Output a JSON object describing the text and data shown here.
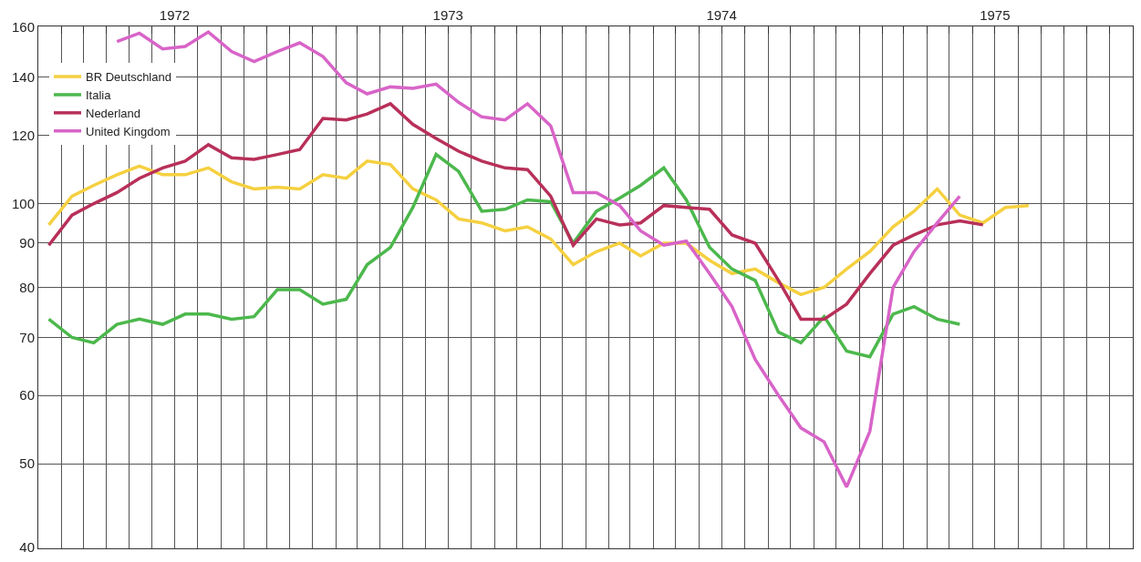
{
  "chart_data": {
    "type": "line",
    "log": "y",
    "grid": true,
    "legend": "top left",
    "marker": "none",
    "line_style": "solid",
    "x": [
      "1972-01-15",
      "1972-02-15",
      "1972-03-15",
      "1972-04-15",
      "1972-05-15",
      "1972-06-15",
      "1972-07-15",
      "1972-08-15",
      "1972-09-15",
      "1972-10-15",
      "1972-11-15",
      "1972-12-15",
      "1973-01-15",
      "1973-02-15",
      "1973-03-15",
      "1973-04-15",
      "1973-05-15",
      "1973-06-15",
      "1973-07-15",
      "1973-08-15",
      "1973-09-15",
      "1973-10-15",
      "1973-11-15",
      "1973-12-15",
      "1974-01-15",
      "1974-02-15",
      "1974-03-15",
      "1974-04-15",
      "1974-05-15",
      "1974-06-15",
      "1974-07-15",
      "1974-08-15",
      "1974-09-15",
      "1974-10-15",
      "1974-11-15",
      "1974-12-15",
      "1975-01-15",
      "1975-02-15",
      "1975-03-15",
      "1975-04-15",
      "1975-05-15",
      "1975-06-15",
      "1975-07-15",
      "1975-08-15"
    ],
    "series": [
      {
        "name": "BR Deutschland",
        "color": "#f5d040",
        "values": [
          94.5,
          102,
          105,
          108,
          110.5,
          108,
          108,
          110,
          106,
          104,
          104.5,
          104,
          108,
          107,
          112,
          111,
          104,
          101,
          96,
          95,
          93,
          94,
          91,
          85,
          88,
          90,
          87,
          90,
          90,
          86,
          83,
          84,
          81,
          78.5,
          80,
          84,
          88,
          94,
          98,
          104,
          97,
          95,
          99,
          99.5
        ]
      },
      {
        "name": "Italia",
        "color": "#4cb84c",
        "values": [
          73.5,
          70,
          69,
          72.5,
          73.5,
          72.5,
          74.5,
          74.5,
          73.5,
          74,
          79.5,
          79.5,
          76.5,
          77.5,
          85,
          89,
          99,
          114,
          109,
          98,
          98.5,
          101,
          100.5,
          90,
          98,
          101.5,
          105,
          110,
          101,
          89,
          84,
          81.5,
          71,
          69,
          74,
          67.5,
          66.5,
          74.5,
          76,
          73.5,
          72.5,
          null,
          null,
          null
        ]
      },
      {
        "name": "Nederland",
        "color": "#b8305a",
        "values": [
          89.5,
          97,
          100,
          103,
          107,
          110,
          112,
          117,
          113,
          112.5,
          114,
          115.5,
          125.5,
          125,
          127,
          130.5,
          123.5,
          119,
          115,
          112,
          110,
          109.5,
          102,
          89.5,
          96,
          94.5,
          95,
          99.5,
          99,
          98.5,
          92,
          90,
          81.5,
          73.5,
          73.5,
          76.5,
          83,
          89.5,
          92,
          94.5,
          95.5,
          94.5,
          null,
          null
        ]
      },
      {
        "name": "United Kingdom",
        "color": "#d864c8",
        "values": [
          null,
          null,
          null,
          154,
          157.5,
          151,
          152,
          158,
          150,
          146,
          150,
          153.5,
          148,
          138,
          134,
          136.5,
          136,
          137.5,
          131,
          126,
          125,
          130.5,
          123,
          103,
          103,
          99.5,
          93,
          89.5,
          90.5,
          83,
          76,
          66,
          60,
          55,
          53,
          47,
          54.5,
          80,
          88,
          95,
          102,
          null,
          null,
          null
        ]
      }
    ],
    "xlim": [
      "1972-01-01",
      "1976-01-01"
    ],
    "xticks": [
      {
        "value": "1972-01-01",
        "label": null
      },
      {
        "value": "1972-02-01",
        "label": null
      },
      {
        "value": "1972-03-01",
        "label": null
      },
      {
        "value": "1972-04-01",
        "label": null
      },
      {
        "value": "1972-05-01",
        "label": null
      },
      {
        "value": "1972-06-01",
        "label": null
      },
      {
        "value": "1972-07-01",
        "label": "1972"
      },
      {
        "value": "1972-08-01",
        "label": null
      },
      {
        "value": "1972-09-01",
        "label": null
      },
      {
        "value": "1972-10-01",
        "label": null
      },
      {
        "value": "1972-11-01",
        "label": null
      },
      {
        "value": "1972-12-01",
        "label": null
      },
      {
        "value": "1973-01-01",
        "label": null
      },
      {
        "value": "1973-02-01",
        "label": null
      },
      {
        "value": "1973-03-01",
        "label": null
      },
      {
        "value": "1973-04-01",
        "label": null
      },
      {
        "value": "1973-05-01",
        "label": null
      },
      {
        "value": "1973-06-01",
        "label": null
      },
      {
        "value": "1973-07-01",
        "label": "1973"
      },
      {
        "value": "1973-08-01",
        "label": null
      },
      {
        "value": "1973-09-01",
        "label": null
      },
      {
        "value": "1973-10-01",
        "label": null
      },
      {
        "value": "1973-11-01",
        "label": null
      },
      {
        "value": "1973-12-01",
        "label": null
      },
      {
        "value": "1974-01-01",
        "label": null
      },
      {
        "value": "1974-02-01",
        "label": null
      },
      {
        "value": "1974-03-01",
        "label": null
      },
      {
        "value": "1974-04-01",
        "label": null
      },
      {
        "value": "1974-05-01",
        "label": null
      },
      {
        "value": "1974-06-01",
        "label": null
      },
      {
        "value": "1974-07-01",
        "label": "1974"
      },
      {
        "value": "1974-08-01",
        "label": null
      },
      {
        "value": "1974-09-01",
        "label": null
      },
      {
        "value": "1974-10-01",
        "label": null
      },
      {
        "value": "1974-11-01",
        "label": null
      },
      {
        "value": "1974-12-01",
        "label": null
      },
      {
        "value": "1975-01-01",
        "label": null
      },
      {
        "value": "1975-02-01",
        "label": null
      },
      {
        "value": "1975-03-01",
        "label": null
      },
      {
        "value": "1975-04-01",
        "label": null
      },
      {
        "value": "1975-05-01",
        "label": null
      },
      {
        "value": "1975-06-01",
        "label": null
      },
      {
        "value": "1975-07-01",
        "label": "1975"
      },
      {
        "value": "1975-08-01",
        "label": null
      },
      {
        "value": "1975-09-01",
        "label": null
      },
      {
        "value": "1975-10-01",
        "label": null
      },
      {
        "value": "1975-11-01",
        "label": null
      },
      {
        "value": "1975-12-01",
        "label": null
      },
      {
        "value": "1976-01-01",
        "label": null
      }
    ],
    "ylim": [
      40,
      160
    ],
    "yticks": [
      40,
      50,
      60,
      70,
      80,
      90,
      100,
      120,
      140,
      160
    ]
  }
}
